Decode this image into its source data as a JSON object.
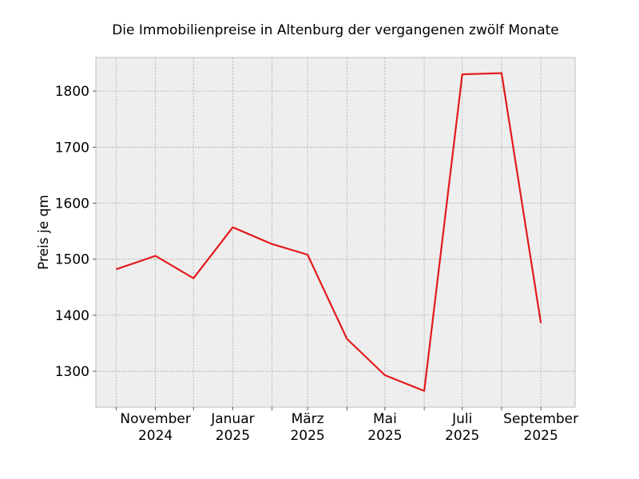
{
  "chart_data": {
    "type": "line",
    "title": "Die Immobilienpreise in Altenburg der vergangenen zwölf Monate",
    "xlabel": "",
    "ylabel": "Preis je qm",
    "x": [
      "2024-10",
      "2024-11",
      "2024-12",
      "2025-01",
      "2025-02",
      "2025-03",
      "2025-04",
      "2025-05",
      "2025-06",
      "2025-07",
      "2025-08",
      "2025-09"
    ],
    "series": [
      {
        "values": [
          1482,
          1506,
          1466,
          1557,
          1527,
          1508,
          1358,
          1293,
          1265,
          1830,
          1832,
          1386
        ],
        "color": "#e31a1c"
      }
    ],
    "xlim": [
      "2024-09-15",
      "2025-09-28"
    ],
    "ylim": [
      1236,
      1860
    ],
    "yticks": [
      1300,
      1400,
      1500,
      1600,
      1700,
      1800
    ],
    "xticks": [
      {
        "x": "2024-11",
        "label": [
          "November",
          "2024"
        ]
      },
      {
        "x": "2025-01",
        "label": [
          "Januar",
          "2025"
        ]
      },
      {
        "x": "2025-03",
        "label": [
          "März",
          "2025"
        ]
      },
      {
        "x": "2025-05",
        "label": [
          "Mai",
          "2025"
        ]
      },
      {
        "x": "2025-07",
        "label": [
          "Juli",
          "2025"
        ]
      },
      {
        "x": "2025-09",
        "label": [
          "September",
          "2025"
        ]
      }
    ],
    "minor_xticks": [
      "2024-10",
      "2024-12",
      "2025-02",
      "2025-04",
      "2025-06",
      "2025-08"
    ],
    "grid": true,
    "background_color": "#eeeeee"
  }
}
